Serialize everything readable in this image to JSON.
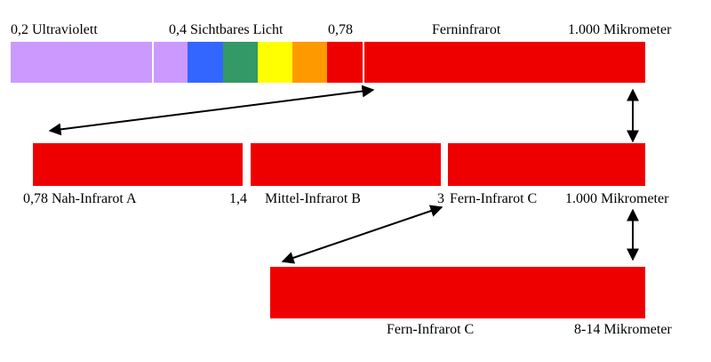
{
  "top_scale": {
    "labels": {
      "uv": "0,2 Ultraviolett",
      "visible": "0,4 Sichtbares Licht",
      "nir_start": "0,78",
      "far_ir": "Ferninfrarot",
      "end": "1.000 Mikrometer"
    },
    "bands": [
      {
        "name": "ultraviolet",
        "color": "#cc99ff"
      },
      {
        "name": "violet",
        "color": "#cc99ff"
      },
      {
        "name": "blue",
        "color": "#3366ff"
      },
      {
        "name": "green",
        "color": "#339966"
      },
      {
        "name": "yellow",
        "color": "#ffff00"
      },
      {
        "name": "orange",
        "color": "#ff9900"
      },
      {
        "name": "red",
        "color": "#ee0000"
      },
      {
        "name": "infrared",
        "color": "#ee0000"
      }
    ]
  },
  "middle_scale": {
    "labels": {
      "nir": "0,78 Nah-Infrarot A",
      "b1": "1,4",
      "mir": "Mittel-Infrarot B",
      "b2": "3",
      "fir": "Fern-Infrarot C",
      "end": "1.000 Mikrometer"
    },
    "color": "#ee0000"
  },
  "bottom_scale": {
    "labels": {
      "fir": "Fern-Infrarot C",
      "range": "8-14 Mikrometer"
    },
    "color": "#ee0000"
  }
}
